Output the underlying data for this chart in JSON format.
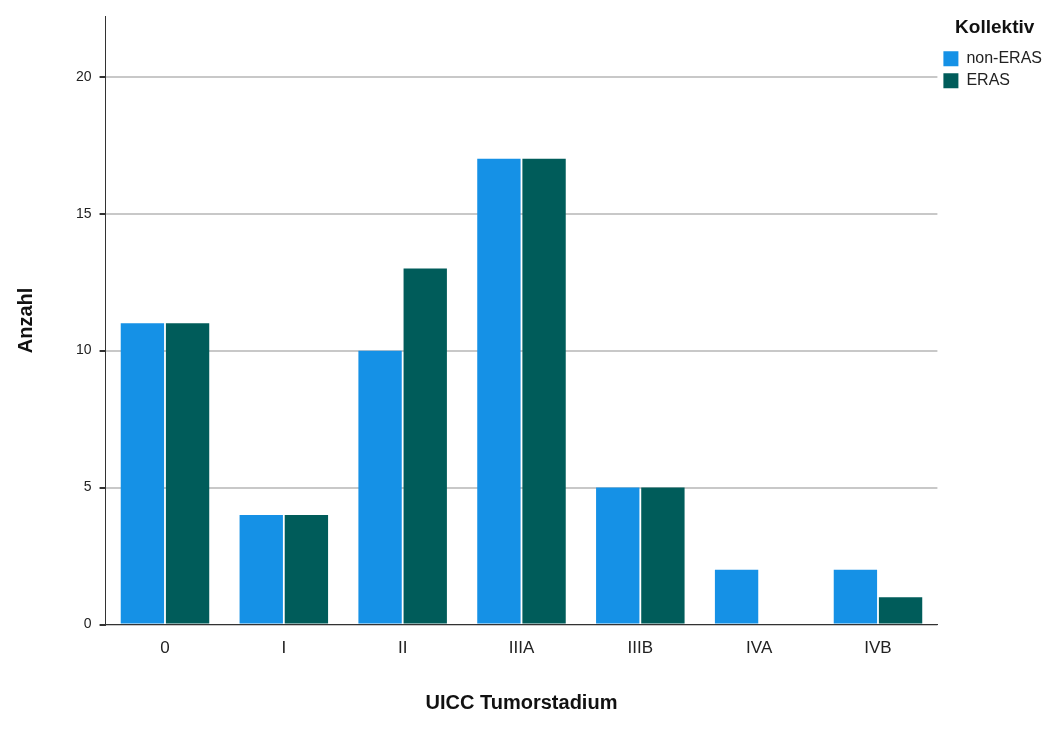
{
  "chart_data": {
    "type": "bar",
    "xlabel": "UICC Tumorstadium",
    "ylabel": "Anzahl",
    "legend_title": "Kollektiv",
    "categories": [
      "0",
      "I",
      "II",
      "IIIA",
      "IIIB",
      "IVA",
      "IVB"
    ],
    "series": [
      {
        "name": "non-ERAS",
        "color": "#1591e6",
        "values": [
          11,
          4,
          10,
          17,
          5,
          2,
          2
        ]
      },
      {
        "name": "ERAS",
        "color": "#005c5a",
        "values": [
          11,
          4,
          13,
          17,
          5,
          0,
          1
        ]
      }
    ],
    "ylim": [
      0,
      22.2
    ],
    "yticks": [
      0,
      5,
      10,
      15,
      20
    ],
    "grid": "y",
    "legend": "top right"
  }
}
